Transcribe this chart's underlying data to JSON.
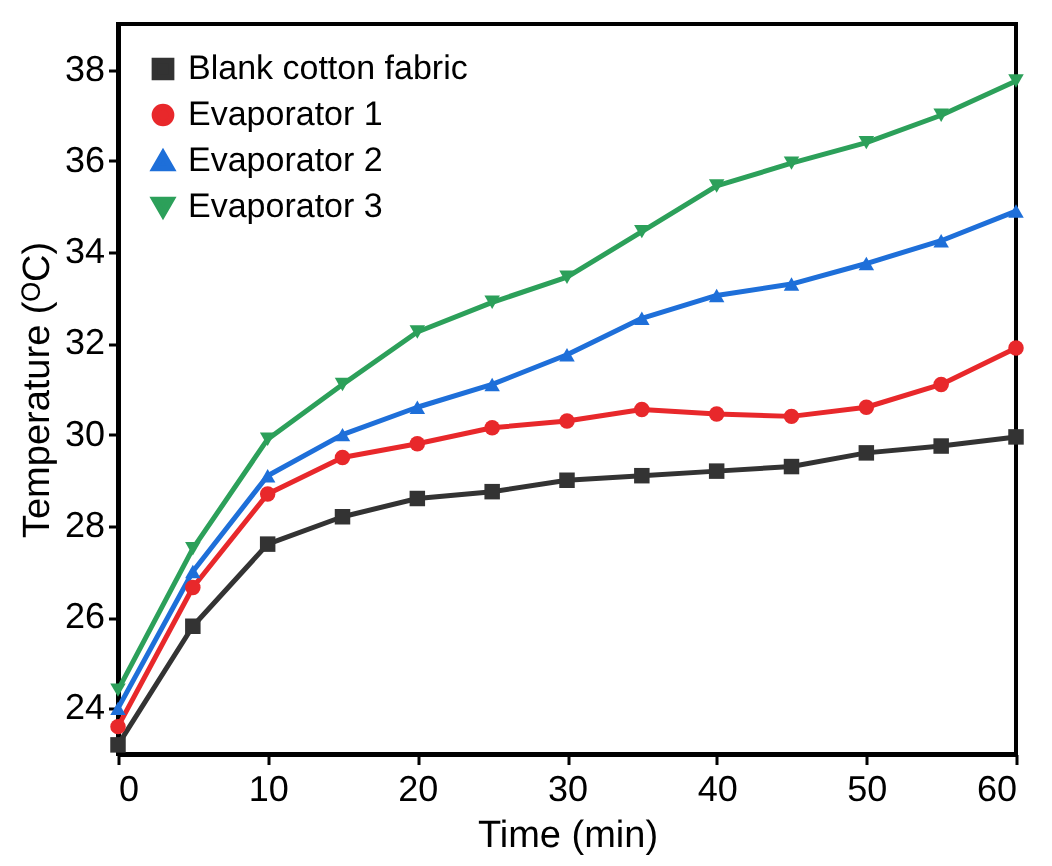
{
  "chart_data": {
    "type": "line",
    "xlabel": "Time (min)",
    "ylabel": "Temperature (ᴼC)",
    "x": [
      0,
      5,
      10,
      15,
      20,
      25,
      30,
      35,
      40,
      45,
      50,
      55,
      60
    ],
    "xlim": [
      0,
      60
    ],
    "xticks": [
      0,
      10,
      20,
      30,
      40,
      50,
      60
    ],
    "ylim": [
      23,
      39
    ],
    "yticks": [
      24,
      26,
      28,
      30,
      32,
      34,
      36,
      38
    ],
    "grid": false,
    "legend": "top left",
    "series": [
      {
        "name": "Blank cotton fabric",
        "color": "#333333",
        "marker": "square",
        "values": [
          23.2,
          25.8,
          27.6,
          28.2,
          28.6,
          28.75,
          29.0,
          29.1,
          29.2,
          29.3,
          29.6,
          29.75,
          29.95
        ]
      },
      {
        "name": "Evaporator 1",
        "color": "#e8282b",
        "marker": "circle",
        "values": [
          23.6,
          26.65,
          28.7,
          29.5,
          29.8,
          30.15,
          30.3,
          30.55,
          30.45,
          30.4,
          30.6,
          31.1,
          31.9
        ]
      },
      {
        "name": "Evaporator 2",
        "color": "#1e6fd9",
        "marker": "triangle",
        "values": [
          24.0,
          27.0,
          29.1,
          30.0,
          30.6,
          31.1,
          31.75,
          32.55,
          33.05,
          33.3,
          33.75,
          34.25,
          34.9
        ]
      },
      {
        "name": "Evaporator 3",
        "color": "#2ca05a",
        "marker": "triangle-down",
        "values": [
          24.4,
          27.5,
          29.9,
          31.1,
          32.25,
          32.9,
          33.45,
          34.45,
          35.45,
          35.95,
          36.4,
          37.0,
          37.75
        ]
      }
    ]
  }
}
